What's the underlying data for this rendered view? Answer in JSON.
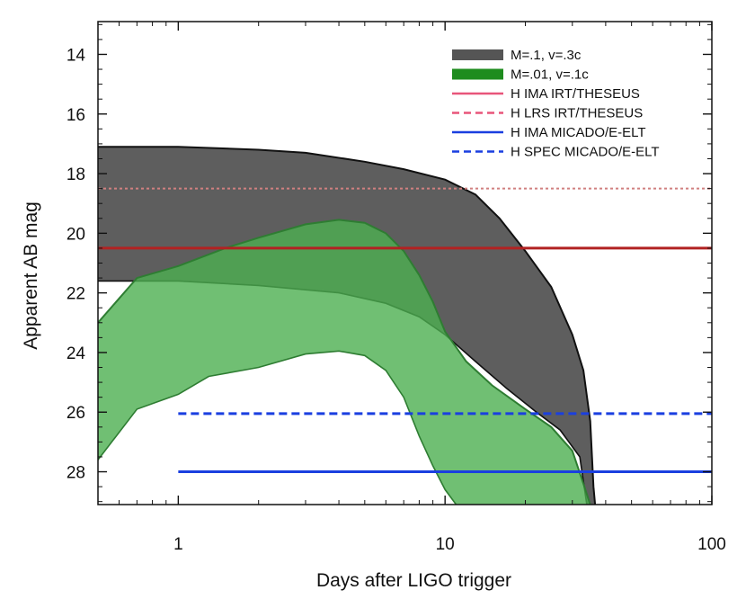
{
  "chart_data": {
    "type": "area",
    "title": "",
    "xlabel": "Days after LIGO trigger",
    "ylabel": "Apparent AB mag",
    "xscale": "log",
    "xlim": [
      0.5,
      100
    ],
    "ylim": [
      29.1,
      12.9
    ],
    "y_inverted": true,
    "x_major_ticks": [
      1,
      10,
      100
    ],
    "x_major_tick_labels": [
      "1",
      "10",
      "100"
    ],
    "y_major_ticks": [
      14,
      16,
      18,
      20,
      22,
      24,
      26,
      28
    ],
    "y_major_tick_labels": [
      "14",
      "16",
      "18",
      "20",
      "22",
      "24",
      "26",
      "28"
    ],
    "legend_position": "top-right",
    "bands": [
      {
        "name": "M=.1, v=.3c",
        "color": "#555555",
        "opacity": 0.95,
        "upper": [
          [
            0.5,
            17.1
          ],
          [
            1,
            17.1
          ],
          [
            2,
            17.2
          ],
          [
            3,
            17.3
          ],
          [
            5,
            17.6
          ],
          [
            7,
            17.85
          ],
          [
            10,
            18.2
          ],
          [
            13,
            18.7
          ],
          [
            16,
            19.5
          ],
          [
            20,
            20.6
          ],
          [
            25,
            21.8
          ],
          [
            30,
            23.4
          ],
          [
            33,
            24.6
          ],
          [
            35,
            26.3
          ],
          [
            36,
            28.5
          ],
          [
            36.5,
            29.1
          ]
        ],
        "lower": [
          [
            0.5,
            21.6
          ],
          [
            1,
            21.6
          ],
          [
            2,
            21.75
          ],
          [
            4,
            22.0
          ],
          [
            6,
            22.35
          ],
          [
            8,
            22.8
          ],
          [
            10,
            23.4
          ],
          [
            13,
            24.3
          ],
          [
            17,
            25.2
          ],
          [
            22,
            26.0
          ],
          [
            27,
            26.6
          ],
          [
            32,
            27.5
          ],
          [
            34,
            29.1
          ]
        ]
      },
      {
        "name": "M=.01, v=.1c",
        "color": "#4caf50",
        "opacity": 0.8,
        "upper": [
          [
            0.5,
            23.0
          ],
          [
            0.7,
            21.5
          ],
          [
            1,
            21.1
          ],
          [
            1.5,
            20.5
          ],
          [
            2,
            20.15
          ],
          [
            3,
            19.7
          ],
          [
            4,
            19.55
          ],
          [
            5,
            19.65
          ],
          [
            6,
            20.0
          ],
          [
            7,
            20.6
          ],
          [
            8,
            21.4
          ],
          [
            9,
            22.3
          ],
          [
            10,
            23.3
          ],
          [
            12,
            24.3
          ],
          [
            15,
            25.1
          ],
          [
            20,
            25.9
          ],
          [
            25,
            26.5
          ],
          [
            30,
            27.3
          ],
          [
            33,
            28.4
          ],
          [
            35,
            29.1
          ]
        ],
        "lower": [
          [
            0.5,
            27.6
          ],
          [
            0.7,
            25.9
          ],
          [
            1,
            25.4
          ],
          [
            1.3,
            24.8
          ],
          [
            2,
            24.5
          ],
          [
            3,
            24.05
          ],
          [
            4,
            23.95
          ],
          [
            5,
            24.1
          ],
          [
            6,
            24.6
          ],
          [
            7,
            25.5
          ],
          [
            8,
            26.8
          ],
          [
            9,
            27.8
          ],
          [
            10,
            28.6
          ],
          [
            11,
            29.1
          ]
        ]
      }
    ],
    "lines": [
      {
        "name": "H IMA IRT/THESEUS",
        "y": 20.5,
        "x_start": 0.5,
        "x_end": 100,
        "color": "#b22222",
        "style": "solid",
        "legend_color": "#e8557a"
      },
      {
        "name": "H LRS IRT/THESEUS",
        "y": 18.5,
        "x_start": 0.5,
        "x_end": 100,
        "color": "#d08080",
        "style": "dotted",
        "legend_color": "#e8557a"
      },
      {
        "name": "H IMA MICADO/E-ELT",
        "y": 28.0,
        "x_start": 1,
        "x_end": 100,
        "color": "#1a3fe0",
        "style": "solid",
        "legend_color": "#1a3fe0"
      },
      {
        "name": "H SPEC MICADO/E-ELT",
        "y": 26.05,
        "x_start": 1,
        "x_end": 100,
        "color": "#1a3fe0",
        "style": "dashed",
        "legend_color": "#1a3fe0"
      }
    ]
  }
}
